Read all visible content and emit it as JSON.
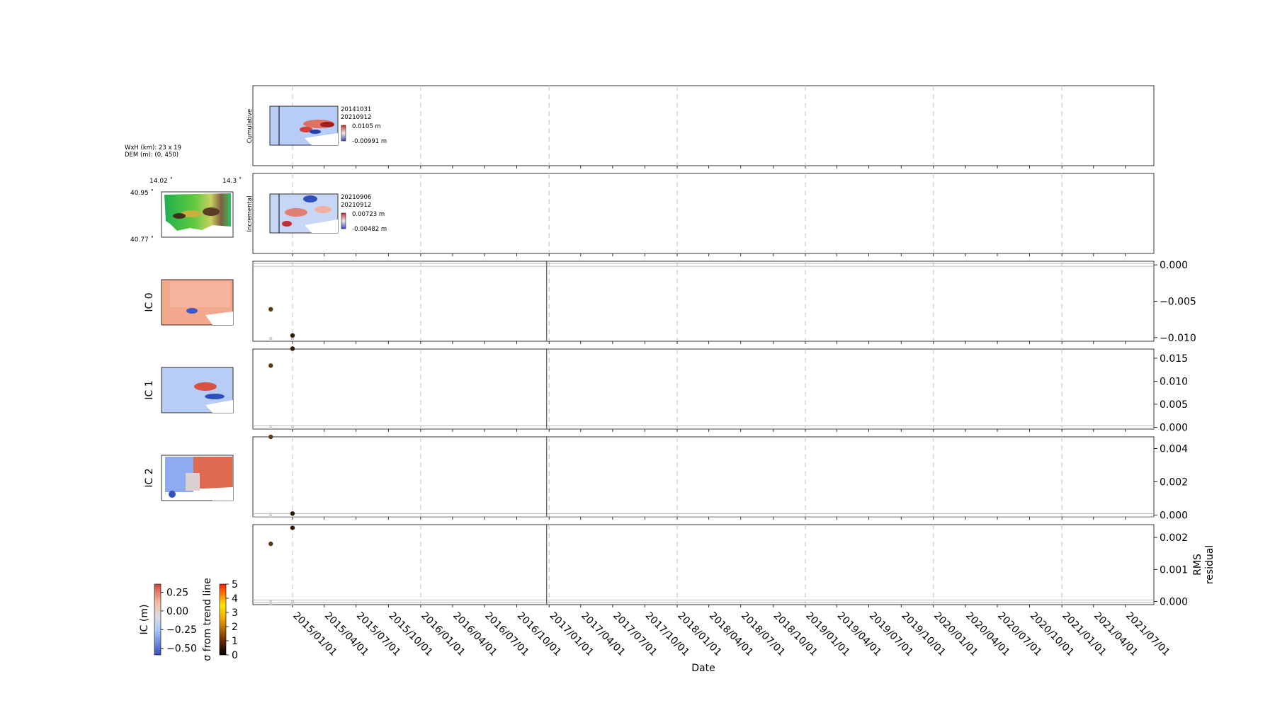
{
  "figure": {
    "xlabel": "Date",
    "dem_info": {
      "size_line": "WxH (km): 23 x 19",
      "dem_line": "DEM (m): (0, 450)"
    },
    "dem_map": {
      "lon_left": "14.02 ˚",
      "lon_right": "14.3 ˚",
      "lat_top": "40.95 ˚",
      "lat_bottom": "40.77 ˚"
    },
    "ic_labels": [
      "IC 0",
      "IC 1",
      "IC 2"
    ],
    "colorbars": {
      "ic": {
        "label": "IC (m)",
        "ticks": [
          "0.25",
          "0.00",
          "−0.25",
          "−0.50"
        ]
      },
      "sigma": {
        "label": "σ from trend line",
        "ticks": [
          "5",
          "4",
          "3",
          "2",
          "1",
          "0"
        ]
      }
    }
  },
  "panels": {
    "cumulative": {
      "ylabel": "Cumulative",
      "date1": "20141031",
      "date2": "20210912",
      "max": "0.0105 m",
      "min": "-0.00991 m"
    },
    "incremental": {
      "ylabel": "Incremental",
      "date1": "20210906",
      "date2": "20210912",
      "max": "0.00723 m",
      "min": "-0.00482 m"
    }
  },
  "colors": {
    "ic_diverging": [
      "#3b4cc0",
      "#aac7fd",
      "#dddddd",
      "#f7b89c",
      "#b40426"
    ],
    "point_dark": "#2b1a08",
    "point_brown": "#5a3a10",
    "grid_dash": "#cccccc",
    "selected_line": "#555555"
  },
  "chart_data": {
    "type": "scatter",
    "x_axis": {
      "label": "Date",
      "ticks": [
        "2015/01/01",
        "2015/04/01",
        "2015/07/01",
        "2015/10/01",
        "2016/01/01",
        "2016/04/01",
        "2016/07/01",
        "2016/10/01",
        "2017/01/01",
        "2017/04/01",
        "2017/07/01",
        "2017/10/01",
        "2018/01/01",
        "2018/04/01",
        "2018/07/01",
        "2018/10/01",
        "2019/01/01",
        "2019/04/01",
        "2019/07/01",
        "2019/10/01",
        "2020/01/01",
        "2020/04/01",
        "2020/07/01",
        "2020/10/01",
        "2021/01/01",
        "2021/04/01",
        "2021/07/01"
      ],
      "range": [
        "2014/09/10",
        "2021/09/20"
      ]
    },
    "selected_date": "2016/12/25",
    "grid": "dashed vertical lines at each year start",
    "series": [
      {
        "panel": "IC 0",
        "ylim": [
          -0.0105,
          0.0005
        ],
        "yticks": [
          "0.000",
          "−0.005",
          "−0.010"
        ],
        "points": [
          {
            "x": "2014/10/31",
            "y": -0.0061
          },
          {
            "x": "2015/01/01",
            "y": -0.0097
          }
        ]
      },
      {
        "panel": "IC 1",
        "ylim": [
          -0.0004,
          0.017
        ],
        "yticks": [
          "0.015",
          "0.010",
          "0.005",
          "0.000"
        ],
        "points": [
          {
            "x": "2014/10/31",
            "y": 0.0134
          },
          {
            "x": "2015/01/01",
            "y": 0.0171
          }
        ]
      },
      {
        "panel": "IC 2",
        "ylim": [
          -0.0001,
          0.0047
        ],
        "yticks": [
          "0.004",
          "0.002",
          "0.000"
        ],
        "points": [
          {
            "x": "2014/10/31",
            "y": 0.0047
          },
          {
            "x": "2015/01/01",
            "y": 0.0001
          }
        ]
      },
      {
        "panel": "RMS residual",
        "ylabel": "RMS residual",
        "ylim": [
          -0.0001,
          0.0024
        ],
        "yticks": [
          "0.002",
          "0.001",
          "0.000"
        ],
        "points": [
          {
            "x": "2014/10/31",
            "y": 0.0018
          },
          {
            "x": "2015/01/01",
            "y": 0.0023
          }
        ]
      }
    ]
  }
}
